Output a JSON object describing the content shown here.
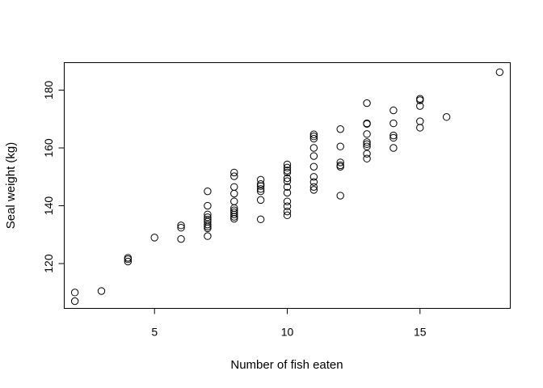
{
  "chart_data": {
    "type": "scatter",
    "title": "",
    "xlabel": "Number of fish eaten",
    "ylabel": "Seal weight (kg)",
    "xlim": [
      1.6,
      18.4
    ],
    "ylim": [
      104.5,
      189.5
    ],
    "xticks": [
      5,
      10,
      15
    ],
    "yticks": [
      120,
      140,
      160,
      180
    ],
    "grid": false,
    "points": [
      [
        2,
        110
      ],
      [
        2,
        107
      ],
      [
        3,
        110.5
      ],
      [
        4,
        122
      ],
      [
        4,
        121.5
      ],
      [
        4,
        120.7
      ],
      [
        5,
        129
      ],
      [
        6,
        133.2
      ],
      [
        6,
        132.4
      ],
      [
        6,
        128.5
      ],
      [
        7,
        145
      ],
      [
        7,
        140
      ],
      [
        7,
        137
      ],
      [
        7,
        136
      ],
      [
        7,
        135.2
      ],
      [
        7,
        134.5
      ],
      [
        7,
        133.5
      ],
      [
        7,
        132.8
      ],
      [
        7,
        132.2
      ],
      [
        7,
        129.5
      ],
      [
        8,
        151.5
      ],
      [
        8,
        150.2
      ],
      [
        8,
        146.5
      ],
      [
        8,
        144.2
      ],
      [
        8,
        141.5
      ],
      [
        8,
        139.2
      ],
      [
        8,
        138.4
      ],
      [
        8,
        137.7
      ],
      [
        8,
        137
      ],
      [
        8,
        136.2
      ],
      [
        8,
        135.5
      ],
      [
        9,
        149
      ],
      [
        9,
        147.5
      ],
      [
        9,
        146.8
      ],
      [
        9,
        145.8
      ],
      [
        9,
        145
      ],
      [
        9,
        142
      ],
      [
        9,
        135.3
      ],
      [
        10,
        154.3
      ],
      [
        10,
        153.2
      ],
      [
        10,
        152.2
      ],
      [
        10,
        151.5
      ],
      [
        10,
        149.5
      ],
      [
        10,
        148.5
      ],
      [
        10,
        146.5
      ],
      [
        10,
        144.5
      ],
      [
        10,
        141.5
      ],
      [
        10,
        139.8
      ],
      [
        10,
        138
      ],
      [
        10,
        136.7
      ],
      [
        11,
        164.7
      ],
      [
        11,
        164
      ],
      [
        11,
        163.2
      ],
      [
        11,
        160
      ],
      [
        11,
        157.2
      ],
      [
        11,
        153.5
      ],
      [
        11,
        150
      ],
      [
        11,
        148.2
      ],
      [
        11,
        146.5
      ],
      [
        11,
        145.5
      ],
      [
        12,
        166.5
      ],
      [
        12,
        160.5
      ],
      [
        12,
        155
      ],
      [
        12,
        154
      ],
      [
        12,
        153.5
      ],
      [
        12,
        143.5
      ],
      [
        13,
        175.5
      ],
      [
        13,
        168.5
      ],
      [
        13,
        168.3
      ],
      [
        13,
        164.8
      ],
      [
        13,
        162
      ],
      [
        13,
        161.3
      ],
      [
        13,
        160.5
      ],
      [
        13,
        158
      ],
      [
        13,
        156.3
      ],
      [
        14,
        173
      ],
      [
        14,
        168.5
      ],
      [
        14,
        164.3
      ],
      [
        14,
        163.5
      ],
      [
        14,
        160
      ],
      [
        15,
        177
      ],
      [
        15,
        176.5
      ],
      [
        15,
        174.5
      ],
      [
        15,
        169.2
      ],
      [
        15,
        167
      ],
      [
        16,
        170.7
      ],
      [
        18,
        186.2
      ]
    ]
  }
}
